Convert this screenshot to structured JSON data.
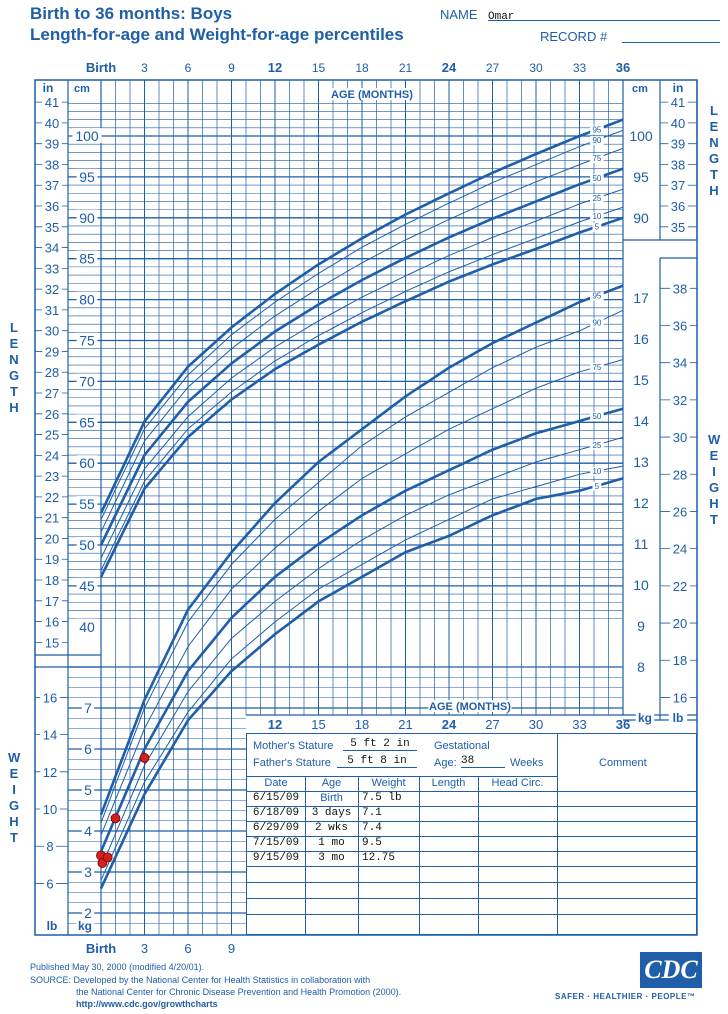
{
  "header": {
    "title1": "Birth to 36 months: Boys",
    "title2": "Length-for-age and Weight-for-age percentiles",
    "name_label": "NAME",
    "name_value": "Omar",
    "record_label": "RECORD #",
    "record_value": ""
  },
  "axes": {
    "age_top": [
      "Birth",
      "3",
      "6",
      "9",
      "12",
      "15",
      "18",
      "21",
      "24",
      "27",
      "30",
      "33",
      "36"
    ],
    "age_title": "AGE (MONTHS)",
    "age_mid": [
      "12",
      "15",
      "18",
      "21",
      "24",
      "27",
      "30",
      "33",
      "36"
    ],
    "age_bottom": [
      "Birth",
      "3",
      "6",
      "9"
    ],
    "cm_unit": "cm",
    "in_unit": "in",
    "kg_unit": "kg",
    "lb_unit": "lb",
    "left_cm": [
      100,
      95,
      90,
      85,
      80,
      75,
      70,
      65,
      60,
      55,
      50,
      45,
      40
    ],
    "left_in": [
      41,
      40,
      39,
      38,
      37,
      36,
      35,
      34,
      33,
      32,
      31,
      30,
      29,
      28,
      27,
      26,
      25,
      24,
      23,
      22,
      21,
      20,
      19,
      18,
      17,
      16,
      15
    ],
    "right_cm": [
      100,
      95,
      90
    ],
    "right_in": [
      41,
      40,
      39,
      38,
      37,
      36,
      35
    ],
    "right_kg": [
      17,
      16,
      15,
      14,
      13,
      12,
      11,
      10,
      9,
      8
    ],
    "right_lb": [
      38,
      36,
      34,
      32,
      30,
      28,
      26,
      24,
      22,
      20,
      18,
      16
    ],
    "left_kg": [
      7,
      6,
      5,
      4,
      3,
      2
    ],
    "left_lb": [
      16,
      14,
      12,
      10,
      8,
      6
    ],
    "length_word": "LENGTH",
    "weight_word": "WEIGHT"
  },
  "chart_data": [
    {
      "type": "line",
      "title": "Length-for-age percentiles",
      "xlabel": "AGE (MONTHS)",
      "ylabel": "LENGTH (cm)",
      "xlim": [
        0,
        36
      ],
      "ylim": [
        40,
        104
      ],
      "x": [
        0,
        3,
        6,
        9,
        12,
        15,
        18,
        21,
        24,
        27,
        30,
        33,
        36
      ],
      "series": [
        {
          "name": "5",
          "values": [
            46.1,
            56.9,
            63.2,
            67.8,
            71.5,
            74.5,
            77.3,
            79.8,
            82.2,
            84.3,
            86.2,
            88.2,
            90.0
          ]
        },
        {
          "name": "10",
          "values": [
            46.9,
            57.8,
            64.2,
            68.7,
            72.5,
            75.6,
            78.4,
            81.0,
            83.4,
            85.5,
            87.5,
            89.5,
            91.3
          ]
        },
        {
          "name": "25",
          "values": [
            48.4,
            59.3,
            65.7,
            70.4,
            74.2,
            77.4,
            80.3,
            82.9,
            85.4,
            87.6,
            89.6,
            91.7,
            93.5
          ]
        },
        {
          "name": "50",
          "values": [
            50.0,
            61.0,
            67.5,
            72.2,
            76.1,
            79.4,
            82.4,
            85.1,
            87.6,
            89.9,
            92.0,
            94.1,
            96.0
          ]
        },
        {
          "name": "75",
          "values": [
            51.6,
            62.7,
            69.3,
            74.0,
            78.0,
            81.4,
            84.5,
            87.3,
            89.8,
            92.2,
            94.4,
            96.5,
            98.5
          ]
        },
        {
          "name": "90",
          "values": [
            53.1,
            64.2,
            70.8,
            75.7,
            79.7,
            83.2,
            86.4,
            89.2,
            91.8,
            94.3,
            96.5,
            98.7,
            100.7
          ]
        },
        {
          "name": "95",
          "values": [
            53.9,
            65.1,
            71.8,
            76.6,
            80.7,
            84.3,
            87.5,
            90.4,
            93.0,
            95.5,
            97.8,
            100.0,
            102.0
          ]
        }
      ]
    },
    {
      "type": "line",
      "title": "Weight-for-age percentiles",
      "xlabel": "AGE (MONTHS)",
      "ylabel": "WEIGHT (kg)",
      "xlim": [
        0,
        36
      ],
      "ylim": [
        1.5,
        18
      ],
      "x": [
        0,
        3,
        6,
        9,
        12,
        15,
        18,
        21,
        24,
        27,
        30,
        33,
        36
      ],
      "series": [
        {
          "name": "5",
          "values": [
            2.6,
            4.9,
            6.7,
            7.9,
            8.8,
            9.6,
            10.2,
            10.8,
            11.2,
            11.7,
            12.1,
            12.3,
            12.6
          ]
        },
        {
          "name": "10",
          "values": [
            2.8,
            5.2,
            6.9,
            8.2,
            9.1,
            9.9,
            10.5,
            11.1,
            11.6,
            12.1,
            12.4,
            12.7,
            12.9
          ]
        },
        {
          "name": "25",
          "values": [
            3.1,
            5.6,
            7.4,
            8.7,
            9.6,
            10.4,
            11.1,
            11.7,
            12.2,
            12.6,
            13.0,
            13.3,
            13.6
          ]
        },
        {
          "name": "50",
          "values": [
            3.5,
            6.0,
            7.9,
            9.2,
            10.2,
            11.0,
            11.7,
            12.3,
            12.8,
            13.3,
            13.7,
            14.0,
            14.3
          ]
        },
        {
          "name": "75",
          "values": [
            3.9,
            6.5,
            8.5,
            9.9,
            10.9,
            11.8,
            12.6,
            13.2,
            13.8,
            14.3,
            14.8,
            15.2,
            15.5
          ]
        },
        {
          "name": "90",
          "values": [
            4.2,
            7.0,
            9.1,
            10.5,
            11.6,
            12.5,
            13.4,
            14.1,
            14.7,
            15.3,
            15.8,
            16.2,
            16.7
          ]
        },
        {
          "name": "95",
          "values": [
            4.4,
            7.2,
            9.4,
            10.8,
            12.0,
            13.0,
            13.8,
            14.6,
            15.3,
            15.9,
            16.4,
            16.9,
            17.3
          ]
        }
      ],
      "points": [
        {
          "age_months": 0,
          "weight_lb": 7.5
        },
        {
          "age_months": 0.1,
          "weight_lb": 7.1
        },
        {
          "age_months": 0.46,
          "weight_lb": 7.4
        },
        {
          "age_months": 1,
          "weight_lb": 9.5
        },
        {
          "age_months": 3,
          "weight_lb": 12.75
        }
      ]
    }
  ],
  "table": {
    "mother_label": "Mother's Stature",
    "mother_value": "5 ft 2 in",
    "father_label": "Father's Stature",
    "father_value": "5 ft 8 in",
    "gest_label": "Gestational",
    "age_label": "Age:",
    "gest_value": "38",
    "weeks_label": "Weeks",
    "comment_label": "Comment",
    "headers": [
      "Date",
      "Age",
      "Weight",
      "Length",
      "Head  Circ."
    ],
    "rows": [
      {
        "date": "6/15/09",
        "age": "Birth",
        "weight": "7.5 lb"
      },
      {
        "date": "6/18/09",
        "age": "3 days",
        "weight": "7.1"
      },
      {
        "date": "6/29/09",
        "age": "2 wks",
        "weight": "7.4"
      },
      {
        "date": "7/15/09",
        "age": "1 mo",
        "weight": "9.5"
      },
      {
        "date": "9/15/09",
        "age": "3 mo",
        "weight": "12.75"
      }
    ]
  },
  "footer": {
    "published": "Published May 30, 2000 (modified 4/20/01).",
    "source1": "SOURCE: Developed by the National Center for Health Statistics in collaboration with",
    "source2": "the National Center for Chronic Disease Prevention and Health Promotion (2000).",
    "url": "http://www.cdc.gov/growthcharts",
    "logo": "CDC",
    "tagline": "SAFER · HEALTHIER · PEOPLE™"
  },
  "colors": {
    "blue": "#1f5ea8",
    "point": "#d41f1f"
  }
}
